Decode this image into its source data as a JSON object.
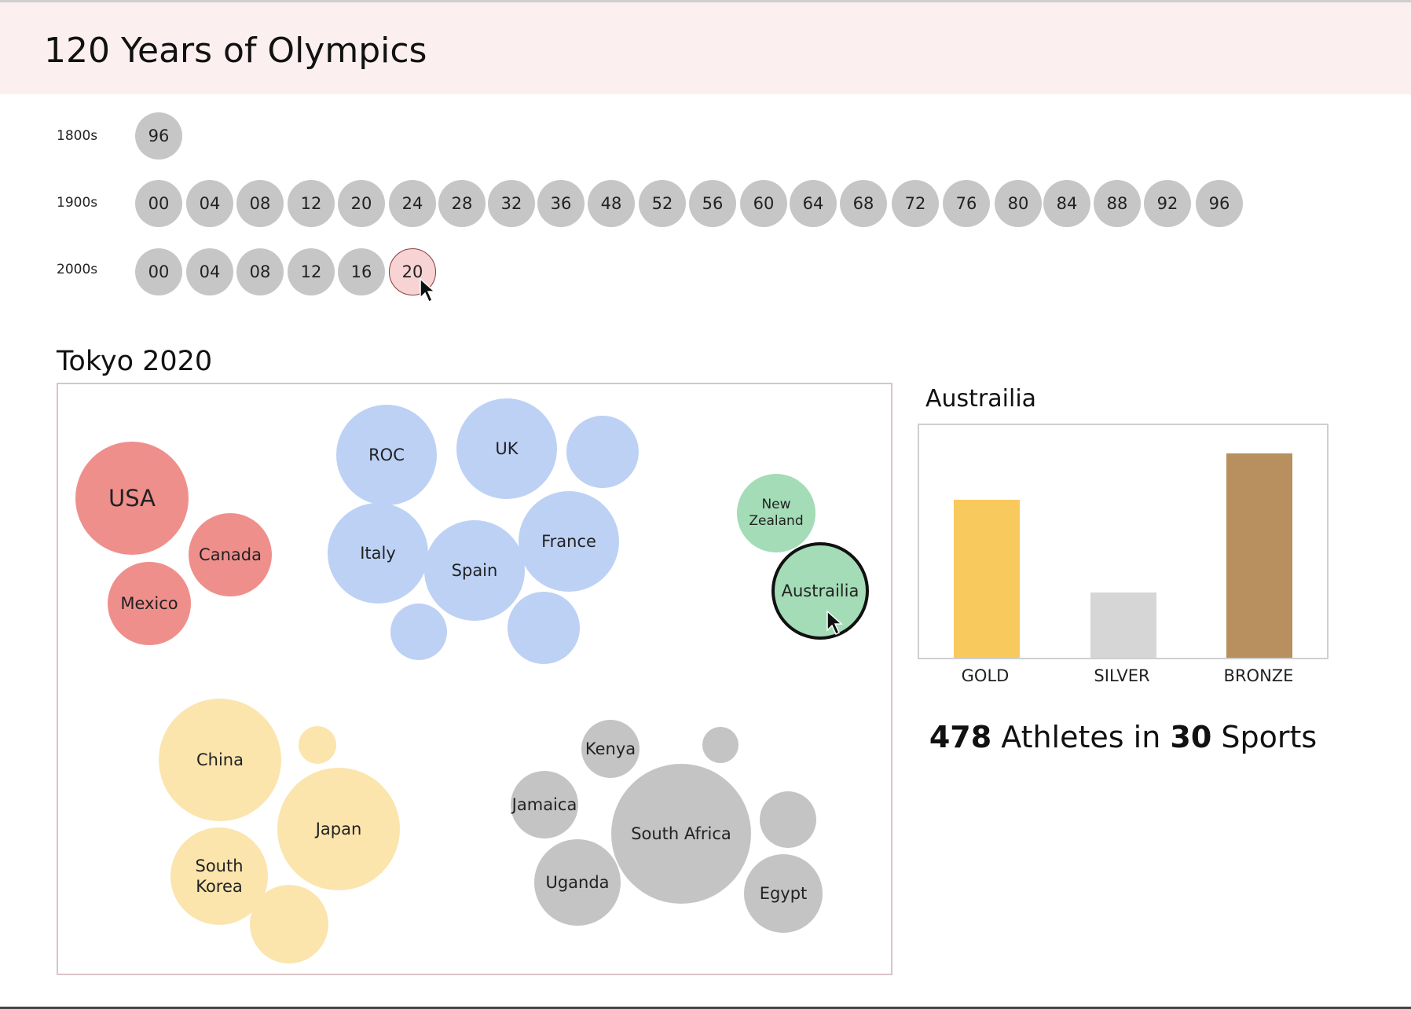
{
  "header": {
    "title": "120 Years of Olympics"
  },
  "decades": [
    {
      "label": "1800s",
      "years": [
        "96"
      ]
    },
    {
      "label": "1900s",
      "years": [
        "00",
        "04",
        "08",
        "12",
        "20",
        "24",
        "28",
        "32",
        "36",
        "48",
        "52",
        "56",
        "60",
        "64",
        "68",
        "72",
        "76",
        "80",
        "84",
        "88",
        "92",
        "96"
      ]
    },
    {
      "label": "2000s",
      "years": [
        "00",
        "04",
        "08",
        "12",
        "16",
        "20"
      ]
    }
  ],
  "selected_year": "20",
  "games": {
    "title": "Tokyo 2020",
    "colors": {
      "americas": "#ef8f8c",
      "europe": "#bdd1f5",
      "oceania": "#a3dcb6",
      "asia": "#fbe5ad",
      "africa": "#c4c4c4"
    },
    "countries": {
      "usa": "USA",
      "canada": "Canada",
      "mexico": "Mexico",
      "roc": "ROC",
      "uk": "UK",
      "italy": "Italy",
      "spain": "Spain",
      "france": "France",
      "new_zealand": [
        "New",
        "Zealand"
      ],
      "australia": "Austrailia",
      "china": "China",
      "japan": "Japan",
      "south_korea": [
        "South",
        "Korea"
      ],
      "kenya": "Kenya",
      "jamaica": "Jamaica",
      "south_africa": "South Africa",
      "uganda": "Uganda",
      "egypt": "Egypt"
    }
  },
  "detail": {
    "title": "Austrailia",
    "chart_data": {
      "type": "bar",
      "categories": [
        "GOLD",
        "SILVER",
        "BRONZE"
      ],
      "values": [
        17,
        7,
        22
      ],
      "colors": [
        "#f8c95c",
        "#d6d6d6",
        "#b88f5e"
      ],
      "ylim": [
        0,
        25
      ]
    },
    "stats": {
      "athletes": "478",
      "athletes_text": " Athletes in ",
      "sports": "30",
      "sports_text": " Sports"
    }
  }
}
